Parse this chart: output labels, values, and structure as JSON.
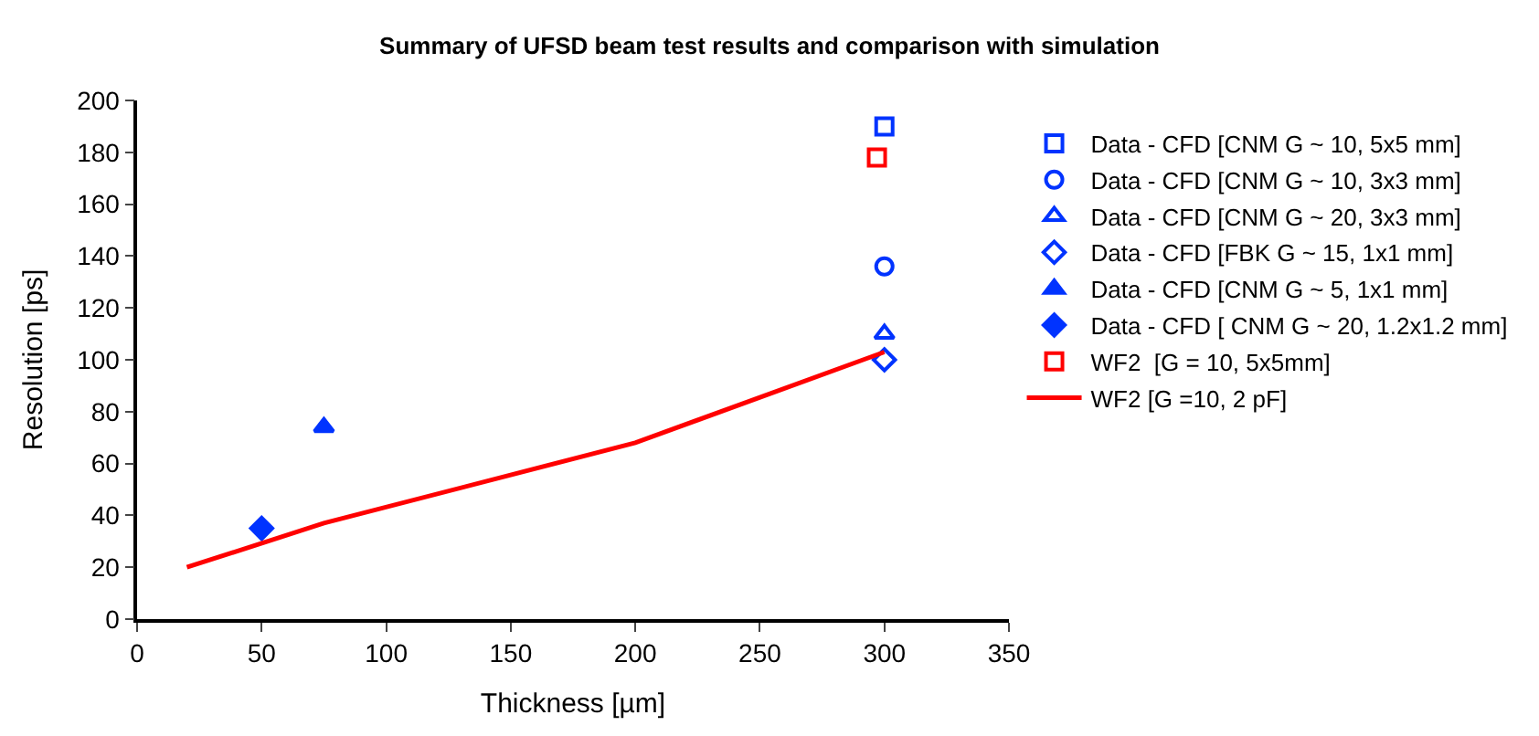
{
  "chart_data": {
    "type": "scatter",
    "title": "Summary of UFSD beam test results and comparison with simulation",
    "xlabel": "Thickness [µm]",
    "ylabel": "Resolution [ps]",
    "xlim": [
      0,
      350
    ],
    "xticks": [
      0,
      50,
      100,
      150,
      200,
      250,
      300,
      350
    ],
    "ylim": [
      0,
      200
    ],
    "yticks": [
      0,
      20,
      40,
      60,
      80,
      100,
      120,
      140,
      160,
      180,
      200
    ],
    "legend": "right",
    "series": [
      {
        "name": "Data - CFD [CNM G ~ 10, 5x5 mm]",
        "color": "#0033ff",
        "marker": "square-open",
        "x": [
          300
        ],
        "values": [
          190
        ]
      },
      {
        "name": "Data - CFD [CNM G ~ 10, 3x3 mm]",
        "color": "#0033ff",
        "marker": "circle-open",
        "x": [
          300
        ],
        "values": [
          136
        ]
      },
      {
        "name": "Data - CFD [CNM G ~ 20, 3x3 mm]",
        "color": "#0033ff",
        "marker": "triangle-up-open",
        "x": [
          300
        ],
        "values": [
          110
        ]
      },
      {
        "name": "Data - CFD [FBK G ~ 15, 1x1 mm]",
        "color": "#0033ff",
        "marker": "diamond-open",
        "x": [
          300
        ],
        "values": [
          100
        ]
      },
      {
        "name": "Data - CFD [CNM G ~ 5, 1x1 mm]",
        "color": "#0033ff",
        "marker": "triangle-up",
        "x": [
          75
        ],
        "values": [
          74
        ]
      },
      {
        "name": "Data - CFD [ CNM G ~ 20, 1.2x1.2 mm]",
        "color": "#0033ff",
        "marker": "diamond",
        "x": [
          50
        ],
        "values": [
          35
        ]
      },
      {
        "name": "WF2  [G = 10, 5x5mm]",
        "color": "#ff0000",
        "marker": "square-open",
        "x": [
          297
        ],
        "values": [
          178
        ]
      },
      {
        "name": "WF2 [G =10, 2 pF]",
        "color": "#ff0000",
        "type": "line",
        "marker": "none",
        "x": [
          20,
          75,
          200,
          300
        ],
        "values": [
          20,
          37,
          68,
          103
        ]
      }
    ]
  }
}
